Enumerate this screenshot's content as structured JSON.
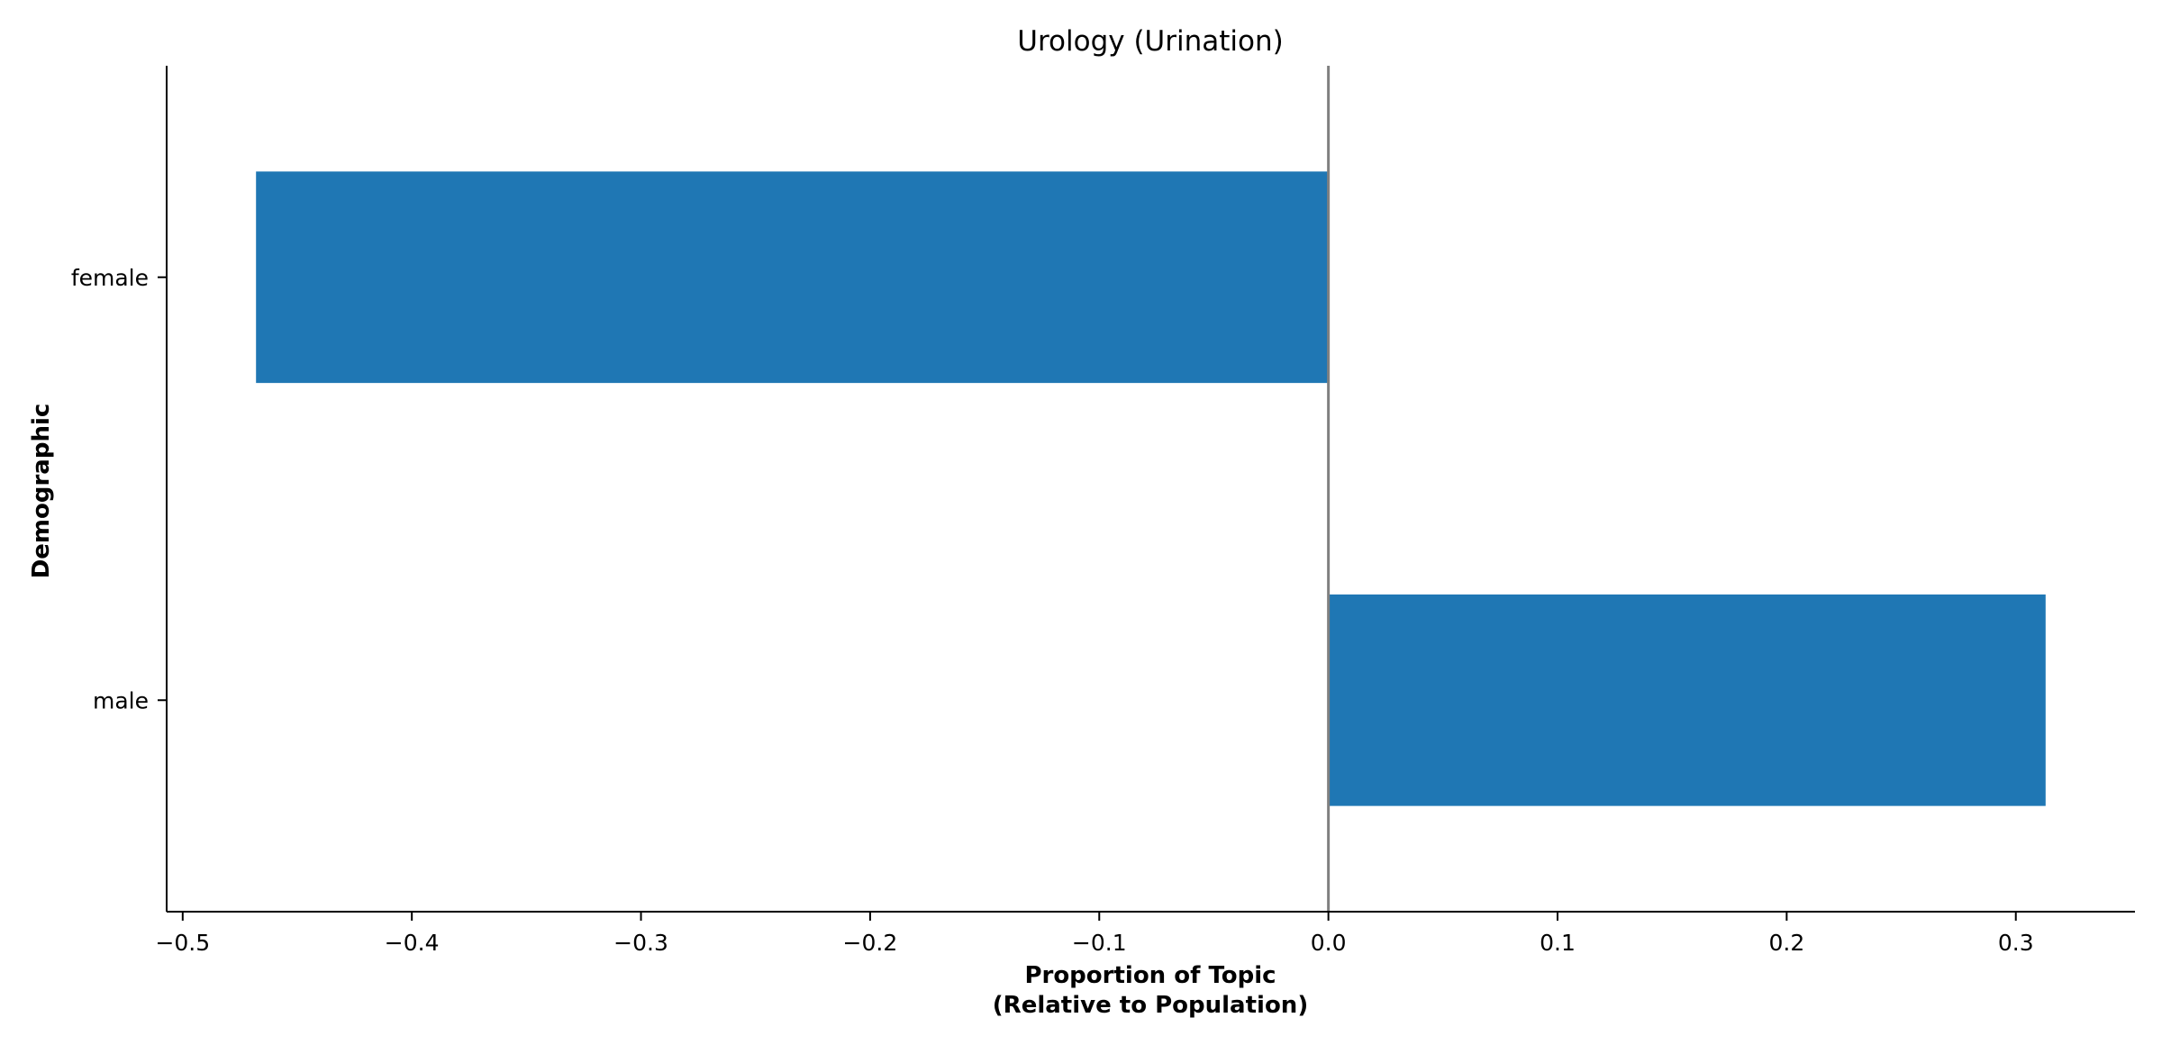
{
  "chart_data": {
    "type": "bar",
    "orientation": "horizontal",
    "title": "Urology (Urination)",
    "xlabel_line1": "Proportion of Topic",
    "xlabel_line2": "(Relative to Population)",
    "ylabel": "Demographic",
    "categories": [
      "female",
      "male"
    ],
    "values": [
      -0.468,
      0.313
    ],
    "xlim": [
      -0.507,
      0.352
    ],
    "xticks": [
      -0.5,
      -0.4,
      -0.3,
      -0.2,
      -0.1,
      0.0,
      0.1,
      0.2,
      0.3
    ],
    "xtick_labels": [
      "−0.5",
      "−0.4",
      "−0.3",
      "−0.2",
      "−0.1",
      "0.0",
      "0.1",
      "0.2",
      "0.3"
    ],
    "zero_line": true,
    "grid": false,
    "colors": {
      "bar": "#1f77b4",
      "zero_line": "#808080",
      "axis": "#000000"
    }
  }
}
